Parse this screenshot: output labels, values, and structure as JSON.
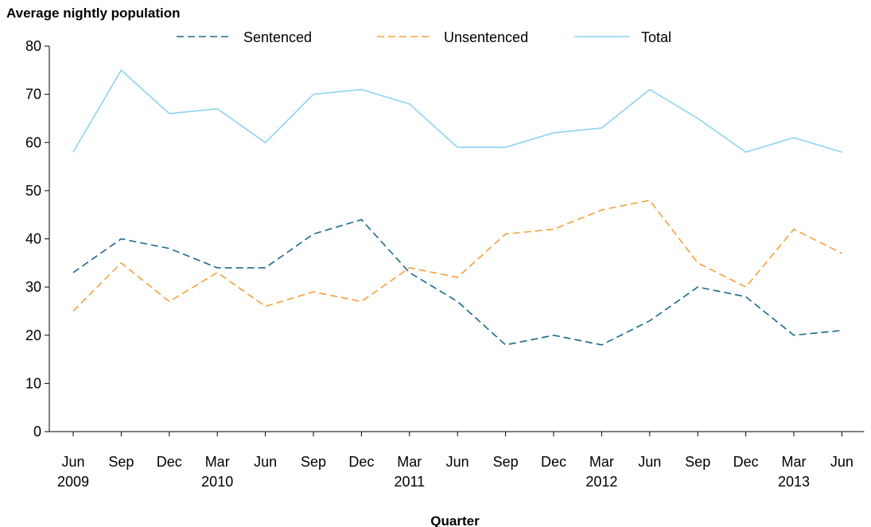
{
  "chart_data": {
    "type": "line",
    "ylabel": "Average nightly population",
    "xlabel": "Quarter",
    "ylim": [
      0,
      80
    ],
    "yticks": [
      0,
      10,
      20,
      30,
      40,
      50,
      60,
      70,
      80
    ],
    "categories": [
      {
        "quarter": "Jun",
        "year": "2009"
      },
      {
        "quarter": "Sep",
        "year": ""
      },
      {
        "quarter": "Dec",
        "year": ""
      },
      {
        "quarter": "Mar",
        "year": "2010"
      },
      {
        "quarter": "Jun",
        "year": ""
      },
      {
        "quarter": "Sep",
        "year": ""
      },
      {
        "quarter": "Dec",
        "year": ""
      },
      {
        "quarter": "Mar",
        "year": "2011"
      },
      {
        "quarter": "Jun",
        "year": ""
      },
      {
        "quarter": "Sep",
        "year": ""
      },
      {
        "quarter": "Dec",
        "year": ""
      },
      {
        "quarter": "Mar",
        "year": "2012"
      },
      {
        "quarter": "Jun",
        "year": ""
      },
      {
        "quarter": "Sep",
        "year": ""
      },
      {
        "quarter": "Dec",
        "year": ""
      },
      {
        "quarter": "Mar",
        "year": "2013"
      },
      {
        "quarter": "Jun",
        "year": ""
      }
    ],
    "series": [
      {
        "name": "Sentenced",
        "color": "#1a6a8a",
        "dash": "dashed",
        "values": [
          33,
          40,
          38,
          34,
          34,
          41,
          44,
          33,
          27,
          18,
          20,
          18,
          23,
          30,
          28,
          20,
          21
        ]
      },
      {
        "name": "Unsentenced",
        "color": "#f5a03a",
        "dash": "dashed",
        "values": [
          25,
          35,
          27,
          33,
          26,
          29,
          27,
          34,
          32,
          41,
          42,
          46,
          48,
          35,
          30,
          42,
          37
        ]
      },
      {
        "name": "Total",
        "color": "#8dd3ef",
        "dash": "solid",
        "values": [
          58,
          75,
          66,
          67,
          60,
          70,
          71,
          68,
          59,
          59,
          62,
          63,
          71,
          65,
          58,
          61,
          58
        ]
      }
    ],
    "legend_position": "top",
    "grid": false
  }
}
